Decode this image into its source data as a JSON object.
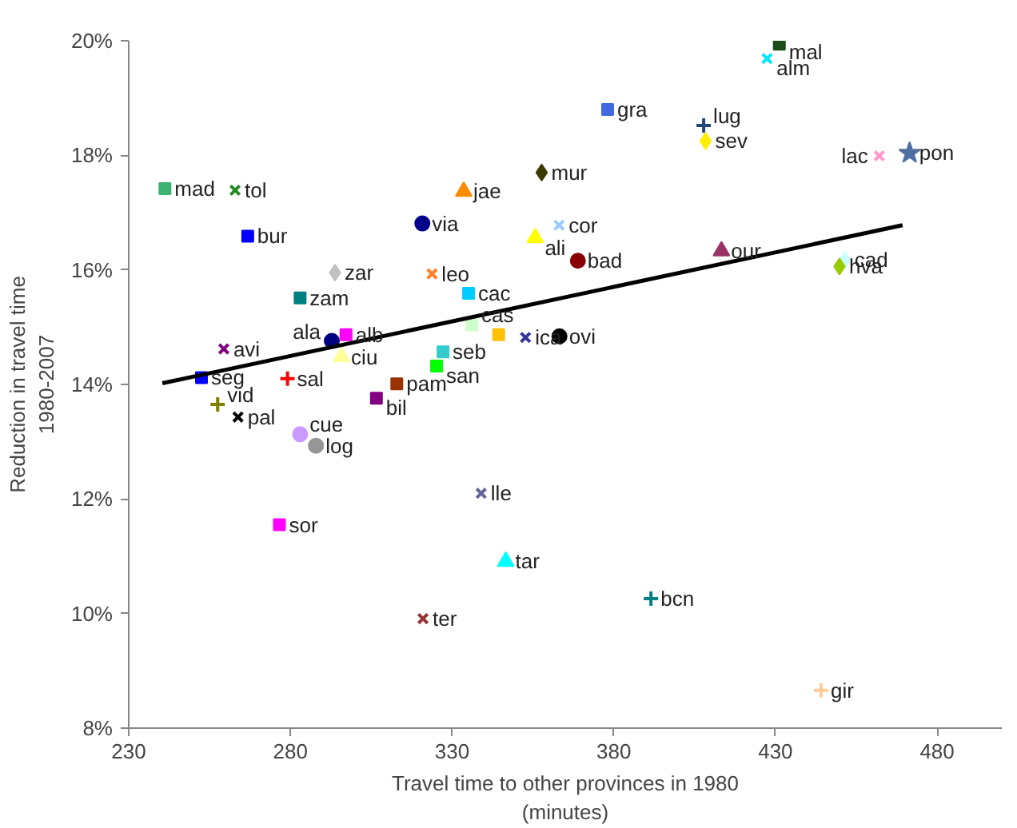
{
  "chart_data": {
    "type": "scatter",
    "xlabel": "Travel time to other provinces in 1980\n(minutes)",
    "ylabel": "Reduction in travel time\n1980-2007",
    "xlim": [
      230,
      500
    ],
    "xticks": [
      230,
      280,
      330,
      380,
      430,
      480
    ],
    "ylim": [
      8,
      20
    ],
    "yticks": [
      {
        "value": 8,
        "label": "8%"
      },
      {
        "value": 10,
        "label": "10%"
      },
      {
        "value": 12,
        "label": "12%"
      },
      {
        "value": 14,
        "label": "14%"
      },
      {
        "value": 16,
        "label": "16%"
      },
      {
        "value": 18,
        "label": "18%"
      },
      {
        "value": 20,
        "label": "20%"
      }
    ],
    "grid": false,
    "series": [
      {
        "name": "mad",
        "color": "#3cb371",
        "marker": "square",
        "x": [
          241.2
        ],
        "values": [
          17.42
        ]
      },
      {
        "name": "tol",
        "color": "#228b22",
        "marker": "x",
        "x": [
          262.9
        ],
        "values": [
          17.39
        ]
      },
      {
        "name": "bur",
        "color": "#0000ff",
        "marker": "square",
        "x": [
          266.8
        ],
        "values": [
          16.59
        ]
      },
      {
        "name": "jae",
        "color": "#ff8c00",
        "marker": "triangle",
        "x": [
          333.6
        ],
        "values": [
          17.37
        ]
      },
      {
        "name": "via",
        "color": "#00008b",
        "marker": "circle",
        "x": [
          320.8
        ],
        "values": [
          16.81
        ]
      },
      {
        "name": "mur",
        "color": "#3b3b00",
        "marker": "diamond",
        "x": [
          357.7
        ],
        "values": [
          17.7
        ]
      },
      {
        "name": "ali",
        "color": "#ffff00",
        "marker": "triangle",
        "x": [
          355.7
        ],
        "values": [
          16.56
        ]
      },
      {
        "name": "cor",
        "color": "#99ccff",
        "marker": "x",
        "x": [
          363.1
        ],
        "values": [
          16.78
        ]
      },
      {
        "name": "bad",
        "color": "#8b0000",
        "marker": "circle",
        "x": [
          368.9
        ],
        "values": [
          16.16
        ]
      },
      {
        "name": "gra",
        "color": "#4169e1",
        "marker": "square",
        "x": [
          378.1
        ],
        "values": [
          18.8
        ]
      },
      {
        "name": "lug",
        "color": "#1f497d",
        "marker": "cross",
        "x": [
          407.8
        ],
        "values": [
          18.52
        ]
      },
      {
        "name": "sev",
        "color": "#ffee00",
        "marker": "diamond",
        "x": [
          408.4
        ],
        "values": [
          18.25
        ]
      },
      {
        "name": "mal",
        "color": "#1a4d1a",
        "marker": "square",
        "x": [
          431.2
        ],
        "values": [
          19.94
        ]
      },
      {
        "name": "alm",
        "color": "#00e5ff",
        "marker": "x",
        "x": [
          427.4
        ],
        "values": [
          19.69
        ]
      },
      {
        "name": "lac",
        "color": "#ff99cc",
        "marker": "x",
        "x": [
          462.1
        ],
        "values": [
          17.99
        ]
      },
      {
        "name": "pon",
        "color": "#4f6fa0",
        "marker": "star",
        "x": [
          471.5
        ],
        "values": [
          18.04
        ]
      },
      {
        "name": "our",
        "color": "#993366",
        "marker": "triangle",
        "x": [
          413.3
        ],
        "values": [
          16.33
        ]
      },
      {
        "name": "cad",
        "color": "#ccffff",
        "marker": "diamond",
        "x": [
          451.5
        ],
        "values": [
          16.18
        ]
      },
      {
        "name": "hva",
        "color": "#99cc00",
        "marker": "diamond",
        "x": [
          449.8
        ],
        "values": [
          16.06
        ]
      },
      {
        "name": "zar",
        "color": "#c0c0c0",
        "marker": "diamond",
        "x": [
          293.8
        ],
        "values": [
          15.95
        ]
      },
      {
        "name": "leo",
        "color": "#ff7f27",
        "marker": "x",
        "x": [
          323.8
        ],
        "values": [
          15.93
        ]
      },
      {
        "name": "zam",
        "color": "#008080",
        "marker": "square",
        "x": [
          283.0
        ],
        "values": [
          15.51
        ]
      },
      {
        "name": "cac",
        "color": "#00ccff",
        "marker": "square",
        "x": [
          335.1
        ],
        "values": [
          15.59
        ]
      },
      {
        "name": "cas",
        "color": "#ccffcc",
        "marker": "square",
        "x": [
          336.1
        ],
        "values": [
          15.04
        ]
      },
      {
        "name": null,
        "color": "#ffc000",
        "marker": "square",
        "x": [
          344.4
        ],
        "values": [
          14.87
        ]
      },
      {
        "name": "ica",
        "color": "#333399",
        "marker": "x",
        "x": [
          352.7
        ],
        "values": [
          14.82
        ]
      },
      {
        "name": "ovi",
        "color": "#000000",
        "marker": "circle",
        "x": [
          363.2
        ],
        "values": [
          14.84
        ]
      },
      {
        "name": "avi",
        "color": "#800080",
        "marker": "x",
        "x": [
          259.4
        ],
        "values": [
          14.62
        ]
      },
      {
        "name": "ala",
        "color": "#000080",
        "marker": "circle",
        "x": [
          292.8
        ],
        "values": [
          14.76
        ]
      },
      {
        "name": "alb",
        "color": "#ff00ff",
        "marker": "square",
        "x": [
          297.2
        ],
        "values": [
          14.87
        ]
      },
      {
        "name": "ciu",
        "color": "#ffff99",
        "marker": "triangle",
        "x": [
          295.8
        ],
        "values": [
          14.48
        ]
      },
      {
        "name": "seb",
        "color": "#33cccc",
        "marker": "square",
        "x": [
          327.2
        ],
        "values": [
          14.57
        ]
      },
      {
        "name": "san",
        "color": "#00ff00",
        "marker": "square",
        "x": [
          325.2
        ],
        "values": [
          14.32
        ]
      },
      {
        "name": "seg",
        "color": "#0000ff",
        "marker": "square",
        "x": [
          252.5
        ],
        "values": [
          14.12
        ]
      },
      {
        "name": "sal",
        "color": "#ff0000",
        "marker": "cross",
        "x": [
          279.1
        ],
        "values": [
          14.1
        ]
      },
      {
        "name": "pam",
        "color": "#993300",
        "marker": "square",
        "x": [
          312.9
        ],
        "values": [
          14.01
        ]
      },
      {
        "name": "bil",
        "color": "#800080",
        "marker": "square",
        "x": [
          306.6
        ],
        "values": [
          13.76
        ]
      },
      {
        "name": "vid",
        "color": "#808000",
        "marker": "cross",
        "x": [
          257.5
        ],
        "values": [
          13.65
        ]
      },
      {
        "name": "pal",
        "color": "#000000",
        "marker": "x",
        "x": [
          263.8
        ],
        "values": [
          13.43
        ]
      },
      {
        "name": "cue",
        "color": "#cc99ff",
        "marker": "circle",
        "x": [
          283.0
        ],
        "values": [
          13.13
        ]
      },
      {
        "name": "log",
        "color": "#969696",
        "marker": "circle",
        "x": [
          287.9
        ],
        "values": [
          12.93
        ]
      },
      {
        "name": "lle",
        "color": "#666699",
        "marker": "x",
        "x": [
          339.0
        ],
        "values": [
          12.1
        ]
      },
      {
        "name": "sor",
        "color": "#ff00ff",
        "marker": "square",
        "x": [
          276.6
        ],
        "values": [
          11.55
        ]
      },
      {
        "name": "tar",
        "color": "#00ffff",
        "marker": "triangle",
        "x": [
          346.6
        ],
        "values": [
          10.91
        ]
      },
      {
        "name": "ter",
        "color": "#993333",
        "marker": "x",
        "x": [
          321.0
        ],
        "values": [
          9.91
        ]
      },
      {
        "name": "bcn",
        "color": "#008080",
        "marker": "cross",
        "x": [
          391.5
        ],
        "values": [
          10.26
        ]
      },
      {
        "name": "gir",
        "color": "#ffcc99",
        "marker": "cross",
        "x": [
          444.1
        ],
        "values": [
          8.66
        ]
      },
      {
        "type": "line",
        "color": "#000000",
        "line_style": "solid",
        "x": [
          240.4,
          469.3
        ],
        "values": [
          14.02,
          16.78
        ]
      }
    ]
  }
}
